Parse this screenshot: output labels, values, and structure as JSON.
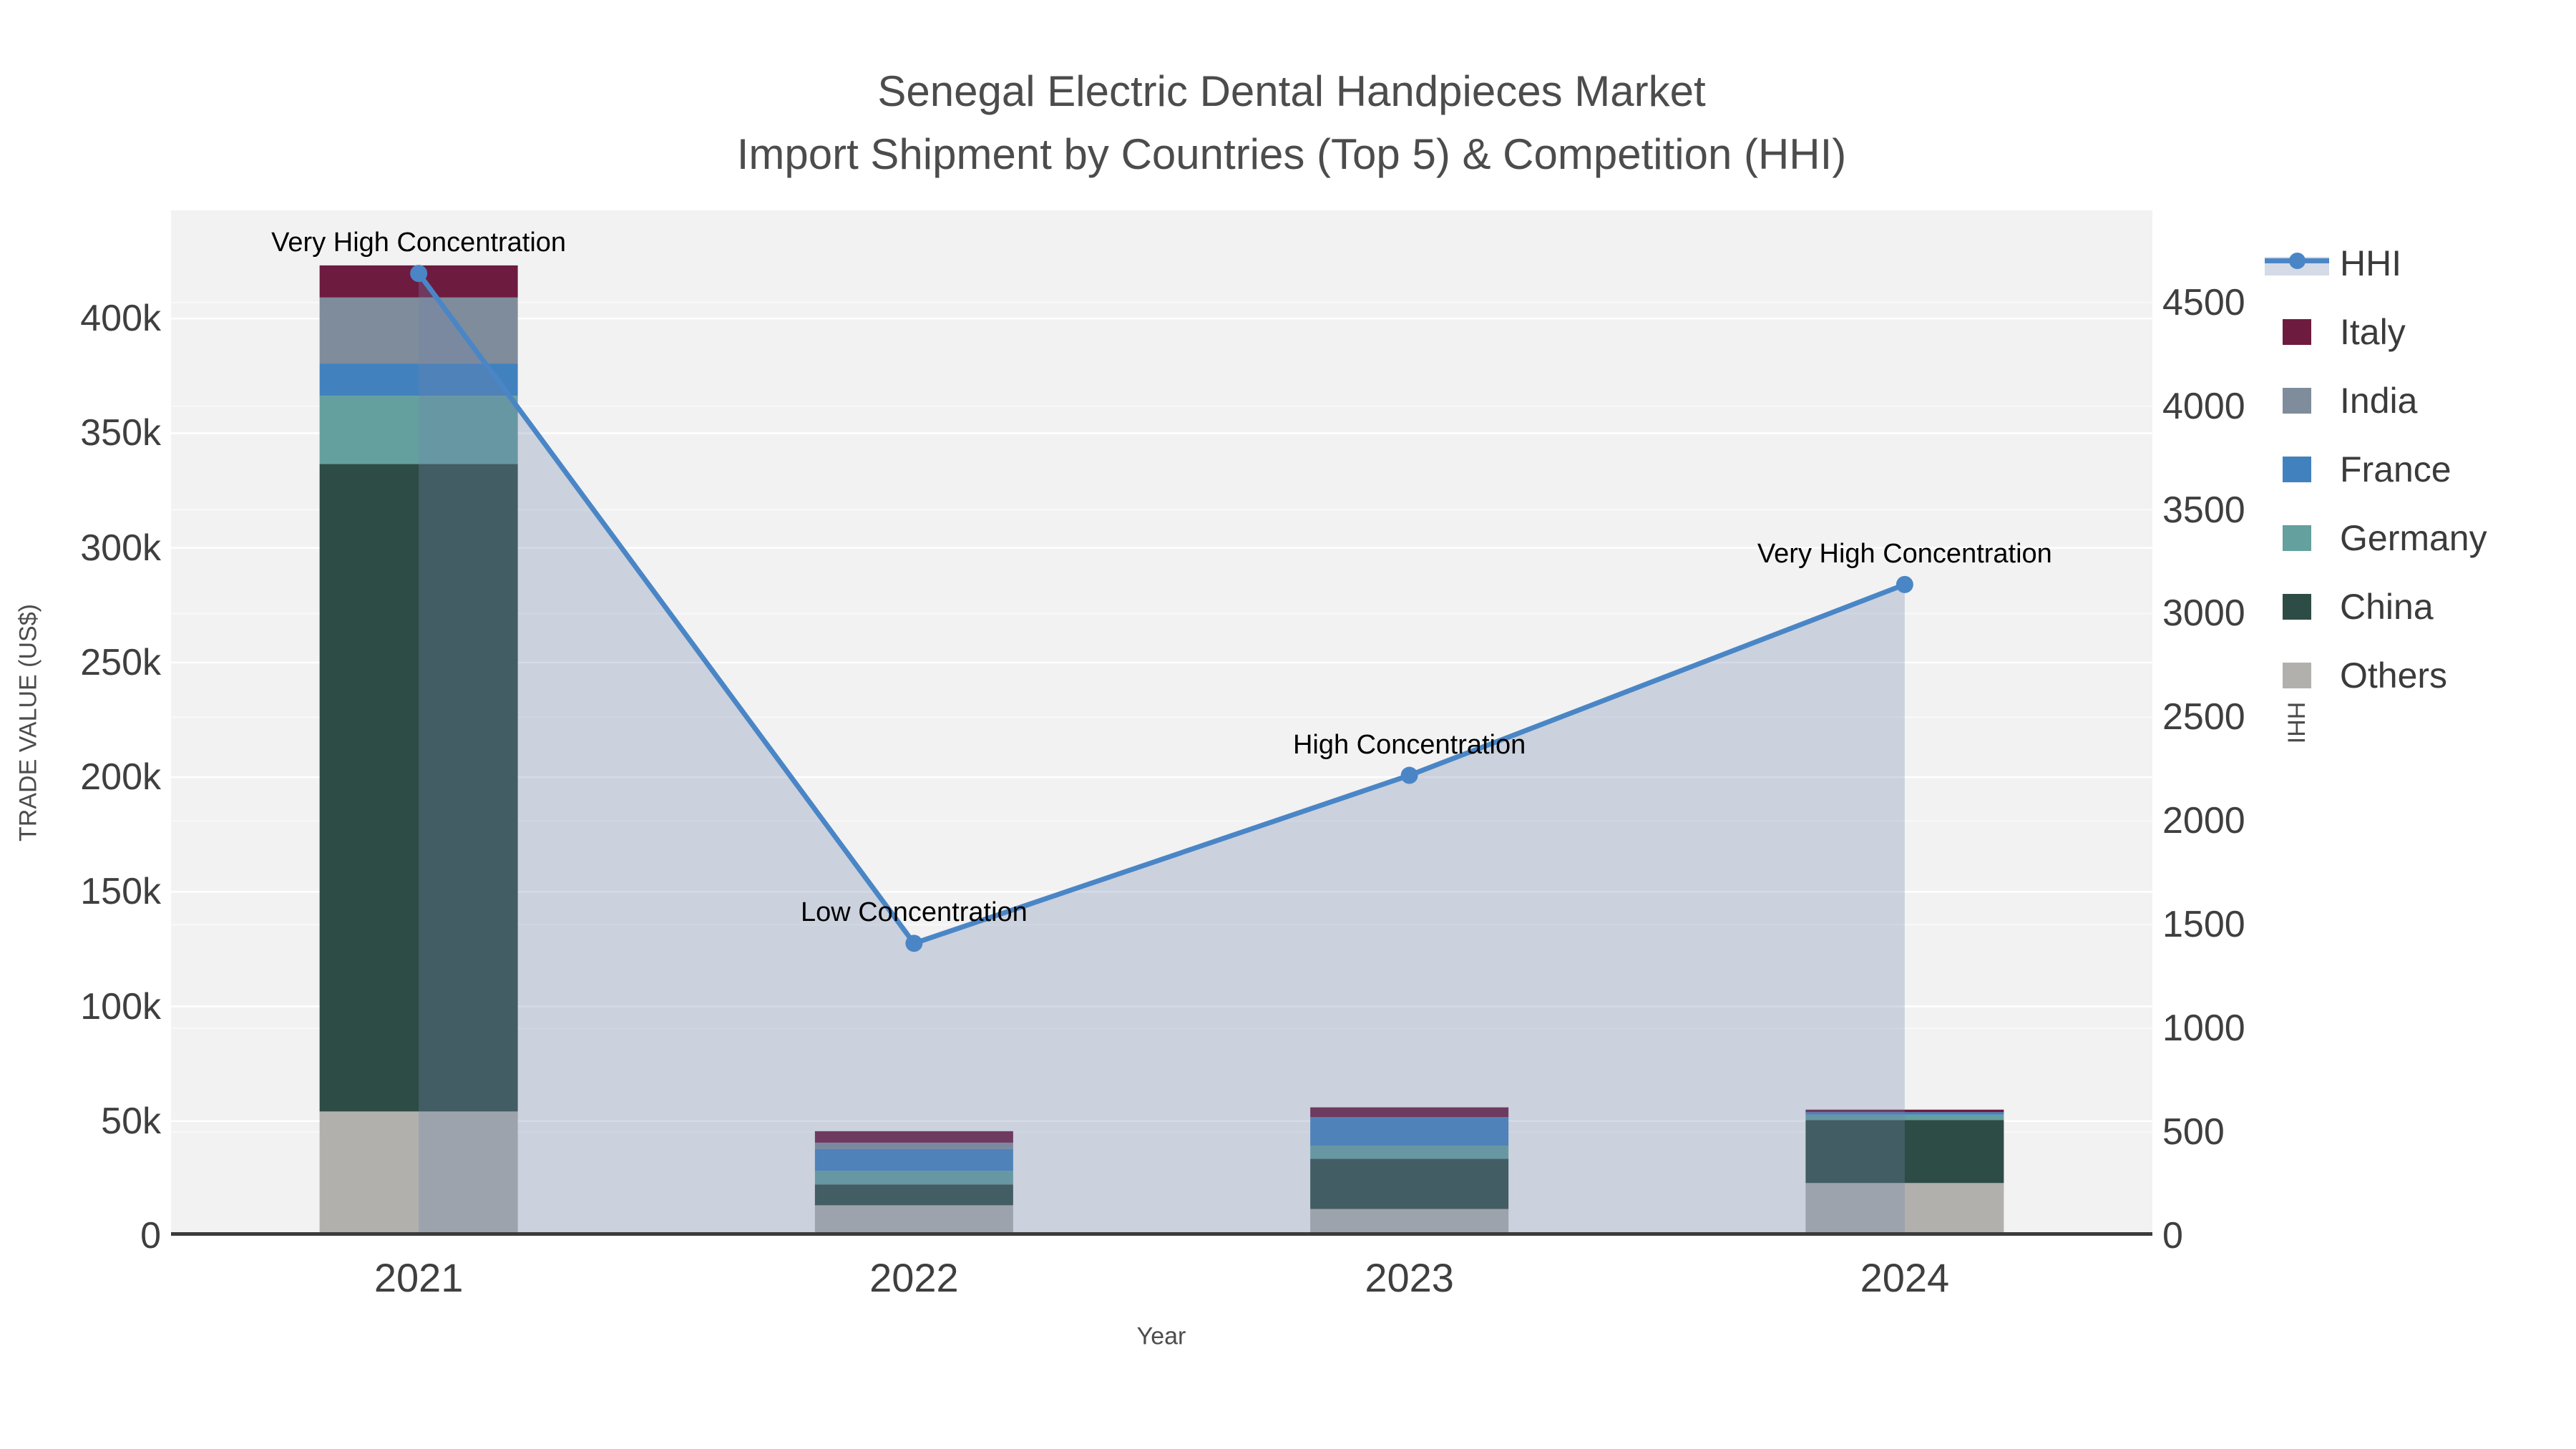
{
  "title": {
    "line1": "Senegal Electric Dental Handpieces Market",
    "line2": "Import Shipment by Countries (Top 5) & Competition (HHI)"
  },
  "axes": {
    "x": {
      "title": "Year"
    },
    "left": {
      "title": "TRADE VALUE (US$)",
      "ticks": [
        {
          "value": 0,
          "label": "0"
        },
        {
          "value": 50000,
          "label": "50k"
        },
        {
          "value": 100000,
          "label": "100k"
        },
        {
          "value": 150000,
          "label": "150k"
        },
        {
          "value": 200000,
          "label": "200k"
        },
        {
          "value": 250000,
          "label": "250k"
        },
        {
          "value": 300000,
          "label": "300k"
        },
        {
          "value": 350000,
          "label": "350k"
        },
        {
          "value": 400000,
          "label": "400k"
        }
      ],
      "range_max": 447200
    },
    "right": {
      "title": "HHI",
      "ticks": [
        {
          "value": 0,
          "label": "0"
        },
        {
          "value": 500,
          "label": "500"
        },
        {
          "value": 1000,
          "label": "1000"
        },
        {
          "value": 1500,
          "label": "1500"
        },
        {
          "value": 2000,
          "label": "2000"
        },
        {
          "value": 2500,
          "label": "2500"
        },
        {
          "value": 3000,
          "label": "3000"
        },
        {
          "value": 3500,
          "label": "3500"
        },
        {
          "value": 4000,
          "label": "4000"
        },
        {
          "value": 4500,
          "label": "4500"
        }
      ],
      "range_max": 4944
    }
  },
  "chart_data": {
    "type": "bar+line",
    "categories": [
      "2021",
      "2022",
      "2023",
      "2024"
    ],
    "bar_stack_order_bottom_to_top": [
      "Others",
      "China",
      "Germany",
      "France",
      "India",
      "Italy"
    ],
    "series": [
      {
        "name": "Others",
        "color": "#b1b0ac",
        "values": [
          54200,
          13300,
          11700,
          23000
        ]
      },
      {
        "name": "China",
        "color": "#2e4c46",
        "values": [
          282400,
          9100,
          21900,
          27500
        ]
      },
      {
        "name": "Germany",
        "color": "#64a09e",
        "values": [
          29700,
          5900,
          5700,
          2300
        ]
      },
      {
        "name": "France",
        "color": "#4182be",
        "values": [
          14100,
          9500,
          12500,
          1100
        ]
      },
      {
        "name": "India",
        "color": "#7e8c9b",
        "values": [
          28800,
          2800,
          0,
          0
        ]
      },
      {
        "name": "Italy",
        "color": "#6e1b40",
        "values": [
          14000,
          5000,
          4200,
          1100
        ]
      }
    ],
    "line_series": {
      "name": "HHI",
      "color": "#4a86c6",
      "fill_color": "rgba(114,134,171,0.30)",
      "values": [
        4640,
        1410,
        2220,
        3140
      ]
    },
    "annotations": [
      {
        "category": "2021",
        "text": "Very High Concentration"
      },
      {
        "category": "2022",
        "text": "Low Concentration"
      },
      {
        "category": "2023",
        "text": "High Concentration"
      },
      {
        "category": "2024",
        "text": "Very High Concentration"
      }
    ],
    "title": "Senegal Electric Dental Handpieces Market Import Shipment by Countries (Top 5) & Competition (HHI)",
    "xlabel": "Year",
    "ylabel_left": "TRADE VALUE (US$)",
    "ylabel_right": "HHI",
    "legend_position": "right"
  },
  "legend": {
    "items": [
      {
        "label": "HHI",
        "color": "#4a86c6"
      },
      {
        "label": "Italy",
        "color": "#6e1b40"
      },
      {
        "label": "India",
        "color": "#7e8c9b"
      },
      {
        "label": "France",
        "color": "#4182be"
      },
      {
        "label": "Germany",
        "color": "#64a09e"
      },
      {
        "label": "China",
        "color": "#2e4c46"
      },
      {
        "label": "Others",
        "color": "#b1b0ac"
      }
    ]
  }
}
